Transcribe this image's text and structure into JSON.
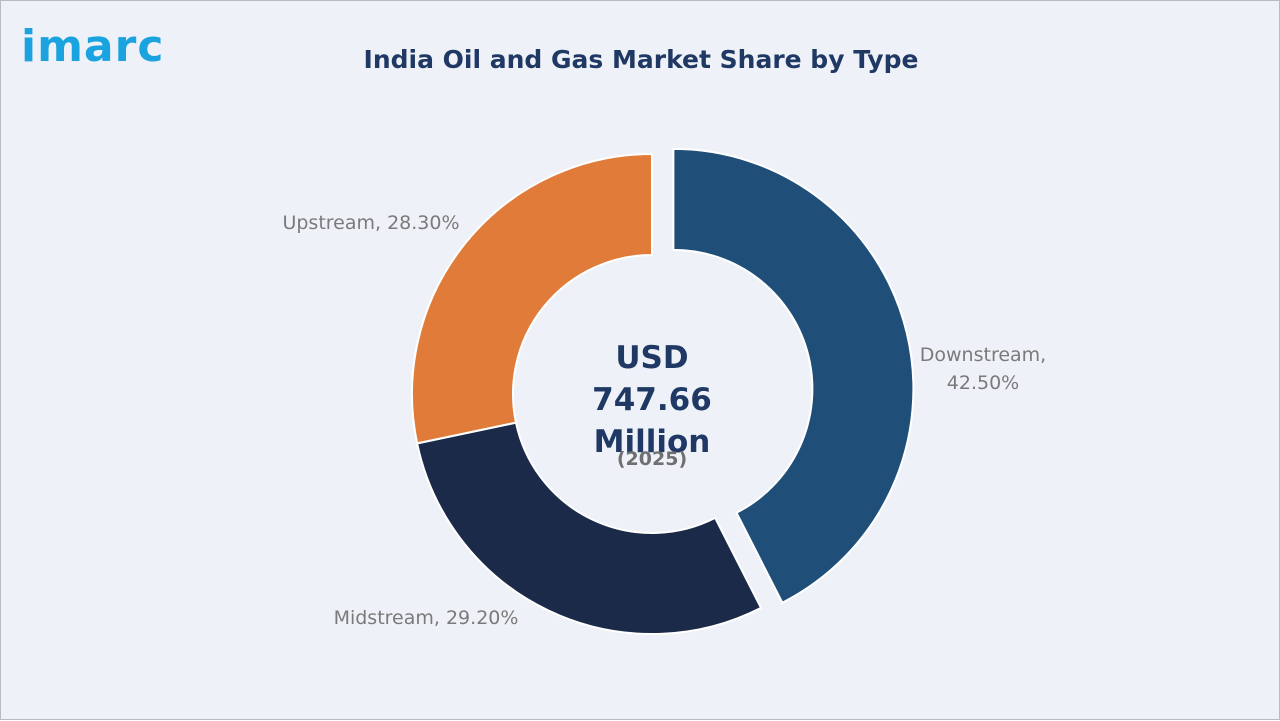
{
  "logo": "imarc",
  "chart_data": {
    "type": "donut",
    "title": "India Oil and Gas Market Share by Type",
    "center_label": "USD 747.66 Million",
    "center_sublabel": "(2025)",
    "categories": [
      "Downstream",
      "Midstream",
      "Upstream"
    ],
    "values": [
      42.5,
      29.2,
      28.3
    ],
    "value_labels": [
      "Downstream, 42.50%",
      "Midstream, 29.20%",
      "Upstream, 28.30%"
    ],
    "colors": [
      "#1f4e79",
      "#1c2a4a",
      "#e07b39"
    ],
    "explode": [
      true,
      false,
      false
    ]
  }
}
